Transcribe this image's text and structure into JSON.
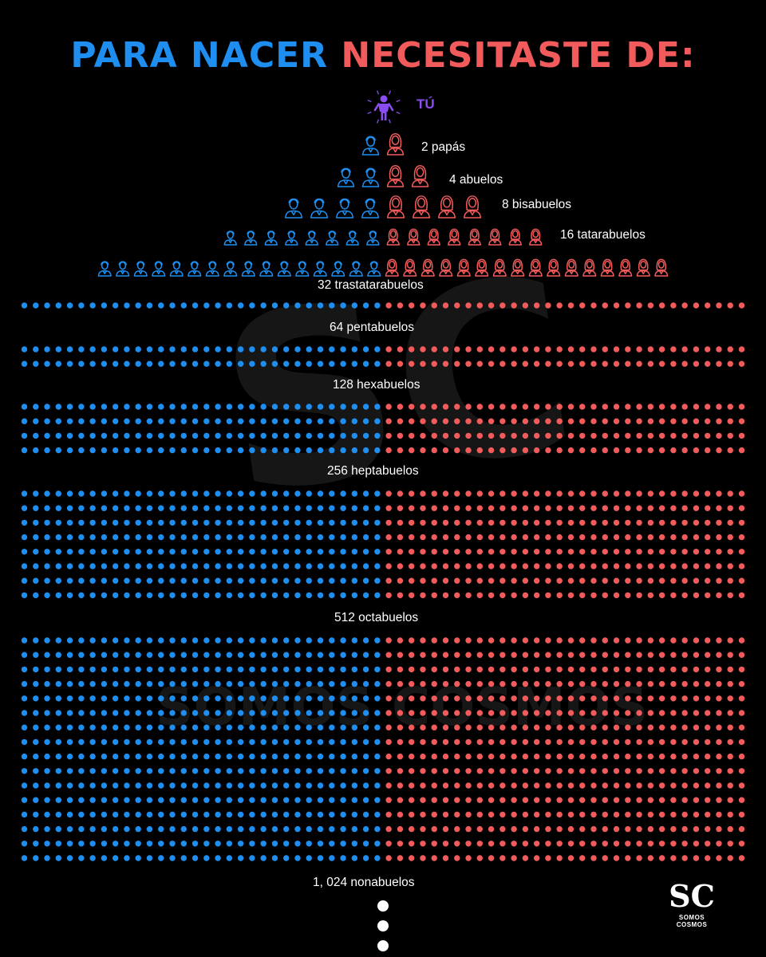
{
  "title": {
    "part1": "PARA NACER",
    "part2": "NECESITASTE DE:"
  },
  "you": {
    "label": "TÚ"
  },
  "generations": [
    {
      "count": 2,
      "label": "2 papás"
    },
    {
      "count": 4,
      "label": "4 abuelos"
    },
    {
      "count": 8,
      "label": "8 bisabuelos"
    },
    {
      "count": 16,
      "label": "16 tatarabuelos"
    },
    {
      "count": 32,
      "label": "32 trastatarabuelos"
    },
    {
      "count": 64,
      "label": "64 pentabuelos"
    },
    {
      "count": 128,
      "label": "128 hexabuelos"
    },
    {
      "count": 256,
      "label": "256 heptabuelos"
    },
    {
      "count": 512,
      "label": "512 octabuelos"
    },
    {
      "count": 1024,
      "label": "1, 024 nonabuelos"
    }
  ],
  "watermark": {
    "mark": "SC",
    "text": "SOMOS COSMOS"
  },
  "logo": {
    "mark": "SC",
    "text": "SOMOS COSMOS"
  },
  "colors": {
    "male": "#1e8ff0",
    "female": "#f25b5b",
    "you": "#8a4df0",
    "background": "#000000"
  },
  "icons": {
    "you": "child-icon",
    "male": "man-icon",
    "female": "woman-icon",
    "more": "ellipsis-dots-icon"
  }
}
